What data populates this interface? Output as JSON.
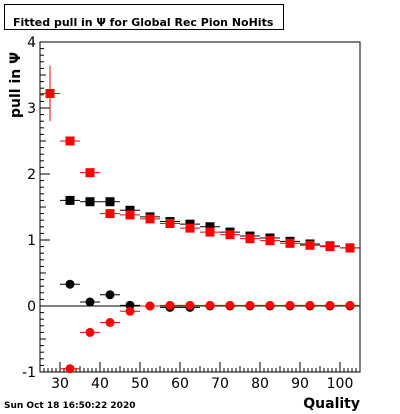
{
  "title": "Fitted pull in  Ψ  for Global Rec Pion NoHits",
  "datestamp": "Sun Oct 18 16:50:22 2020",
  "chart_data": {
    "type": "scatter",
    "title": "Fitted pull in  Ψ  for Global Rec Pion NoHits",
    "xlabel": "Quality",
    "ylabel": "pull in  Ψ",
    "xlim": [
      25,
      105
    ],
    "ylim": [
      -1,
      4
    ],
    "x_ticks": [
      30,
      40,
      50,
      60,
      70,
      80,
      90,
      100
    ],
    "y_ticks": [
      -1,
      0,
      1,
      2,
      3,
      4
    ],
    "grid": false,
    "colors": {
      "black": "#000000",
      "red": "#ff0000"
    },
    "series": [
      {
        "marker": "square",
        "color": "#000000",
        "x": [
          32.5,
          37.5,
          42.5,
          47.5,
          52.5,
          57.5,
          62.5,
          67.5,
          72.5,
          77.5,
          82.5,
          87.5,
          92.5,
          97.5,
          102.5
        ],
        "y": [
          1.6,
          1.58,
          1.58,
          1.45,
          1.35,
          1.28,
          1.24,
          1.2,
          1.12,
          1.06,
          1.03,
          0.98,
          0.94,
          0.91,
          0.88
        ],
        "yerr": [
          0.04,
          0.03,
          0.03,
          0.03,
          0.02,
          0.02,
          0.02,
          0.02,
          0.02,
          0.02,
          0.02,
          0.02,
          0.02,
          0.02,
          0.02
        ]
      },
      {
        "marker": "square",
        "color": "#ff0000",
        "x": [
          27.5,
          32.5,
          37.5,
          42.5,
          47.5,
          52.5,
          57.5,
          62.5,
          67.5,
          72.5,
          77.5,
          82.5,
          87.5,
          92.5,
          97.5,
          102.5
        ],
        "y": [
          3.22,
          2.5,
          2.02,
          1.4,
          1.38,
          1.32,
          1.25,
          1.18,
          1.12,
          1.08,
          1.02,
          0.99,
          0.95,
          0.92,
          0.9,
          0.88
        ],
        "yerr": [
          0.42,
          0.05,
          0.04,
          0.04,
          0.03,
          0.03,
          0.03,
          0.03,
          0.02,
          0.02,
          0.02,
          0.02,
          0.02,
          0.02,
          0.02,
          0.02
        ]
      },
      {
        "marker": "circle",
        "color": "#000000",
        "x": [
          32.5,
          37.5,
          42.5,
          47.5,
          52.5,
          57.5,
          62.5,
          67.5,
          72.5,
          77.5,
          82.5,
          87.5,
          92.5,
          97.5,
          102.5
        ],
        "y": [
          0.33,
          0.06,
          0.17,
          0.01,
          0.0,
          -0.02,
          -0.02,
          0.0,
          0.0,
          0.0,
          0.0,
          0.0,
          0.0,
          0.0,
          0.0
        ],
        "yerr": [
          0.03,
          0.03,
          0.03,
          0.02,
          0.02,
          0.02,
          0.02,
          0.02,
          0.02,
          0.02,
          0.02,
          0.02,
          0.02,
          0.02,
          0.02
        ]
      },
      {
        "marker": "circle",
        "color": "#ff0000",
        "x": [
          32.5,
          37.5,
          42.5,
          47.5,
          52.5,
          57.5,
          62.5,
          67.5,
          72.5,
          77.5,
          82.5,
          87.5,
          92.5,
          97.5,
          102.5
        ],
        "y": [
          -0.95,
          -0.4,
          -0.25,
          -0.08,
          0.0,
          0.01,
          0.01,
          0.01,
          0.01,
          0.01,
          0.01,
          0.01,
          0.01,
          0.01,
          0.01
        ],
        "yerr": [
          0.04,
          0.03,
          0.03,
          0.03,
          0.02,
          0.02,
          0.02,
          0.02,
          0.02,
          0.02,
          0.02,
          0.02,
          0.02,
          0.02,
          0.02
        ]
      }
    ]
  }
}
